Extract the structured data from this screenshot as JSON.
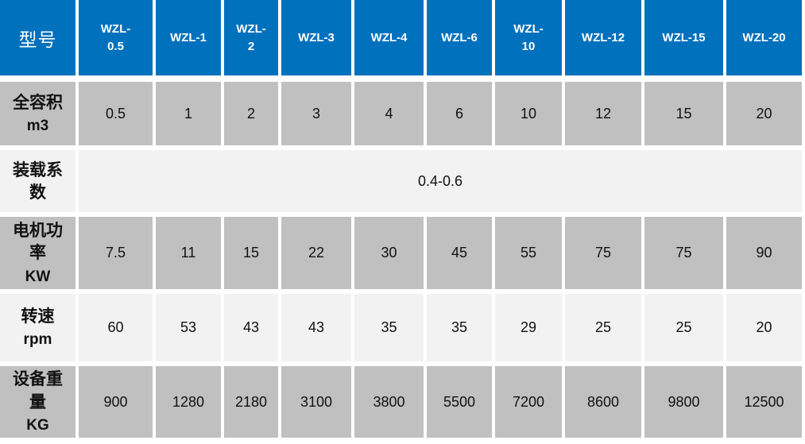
{
  "colors": {
    "header_bg": "#0071bd",
    "header_text": "#ffffff",
    "gray_row_bg": "#c0c0c0",
    "light_row_bg": "#f2f2f2",
    "body_text": "#111111",
    "separator": "#ffffff"
  },
  "chart_data": {
    "type": "table",
    "corner_label": "型号",
    "columns": [
      "WZL-0.5",
      "WZL-1",
      "WZL-2",
      "WZL-3",
      "WZL-4",
      "WZL-6",
      "WZL-10",
      "WZL-12",
      "WZL-15",
      "WZL-20"
    ],
    "columns_display": [
      "WZL-\n0.5",
      "WZL-1",
      "WZL-\n2",
      "WZL-3",
      "WZL-4",
      "WZL-6",
      "WZL-\n10",
      "WZL-12",
      "WZL-15",
      "WZL-20"
    ],
    "rows": [
      {
        "label": "全容积",
        "label_display": "全容积",
        "unit": "m3",
        "shade": "gray",
        "values": [
          "0.5",
          "1",
          "2",
          "3",
          "4",
          "6",
          "10",
          "12",
          "15",
          "20"
        ]
      },
      {
        "label": "装载系数",
        "label_display": "装载系\n数",
        "unit": "",
        "shade": "light",
        "span_value": "0.4-0.6"
      },
      {
        "label": "电机功率",
        "label_display": "电机功\n率",
        "unit": "KW",
        "shade": "gray",
        "values": [
          "7.5",
          "11",
          "15",
          "22",
          "30",
          "45",
          "55",
          "75",
          "75",
          "90"
        ]
      },
      {
        "label": "转速",
        "label_display": "转速",
        "unit": "rpm",
        "shade": "light",
        "values": [
          "60",
          "53",
          "43",
          "43",
          "35",
          "35",
          "29",
          "25",
          "25",
          "20"
        ]
      },
      {
        "label": "设备重量",
        "label_display": "设备重\n量",
        "unit": "KG",
        "shade": "gray",
        "values": [
          "900",
          "1280",
          "2180",
          "3100",
          "3800",
          "5500",
          "7200",
          "8600",
          "9800",
          "12500"
        ]
      }
    ]
  }
}
